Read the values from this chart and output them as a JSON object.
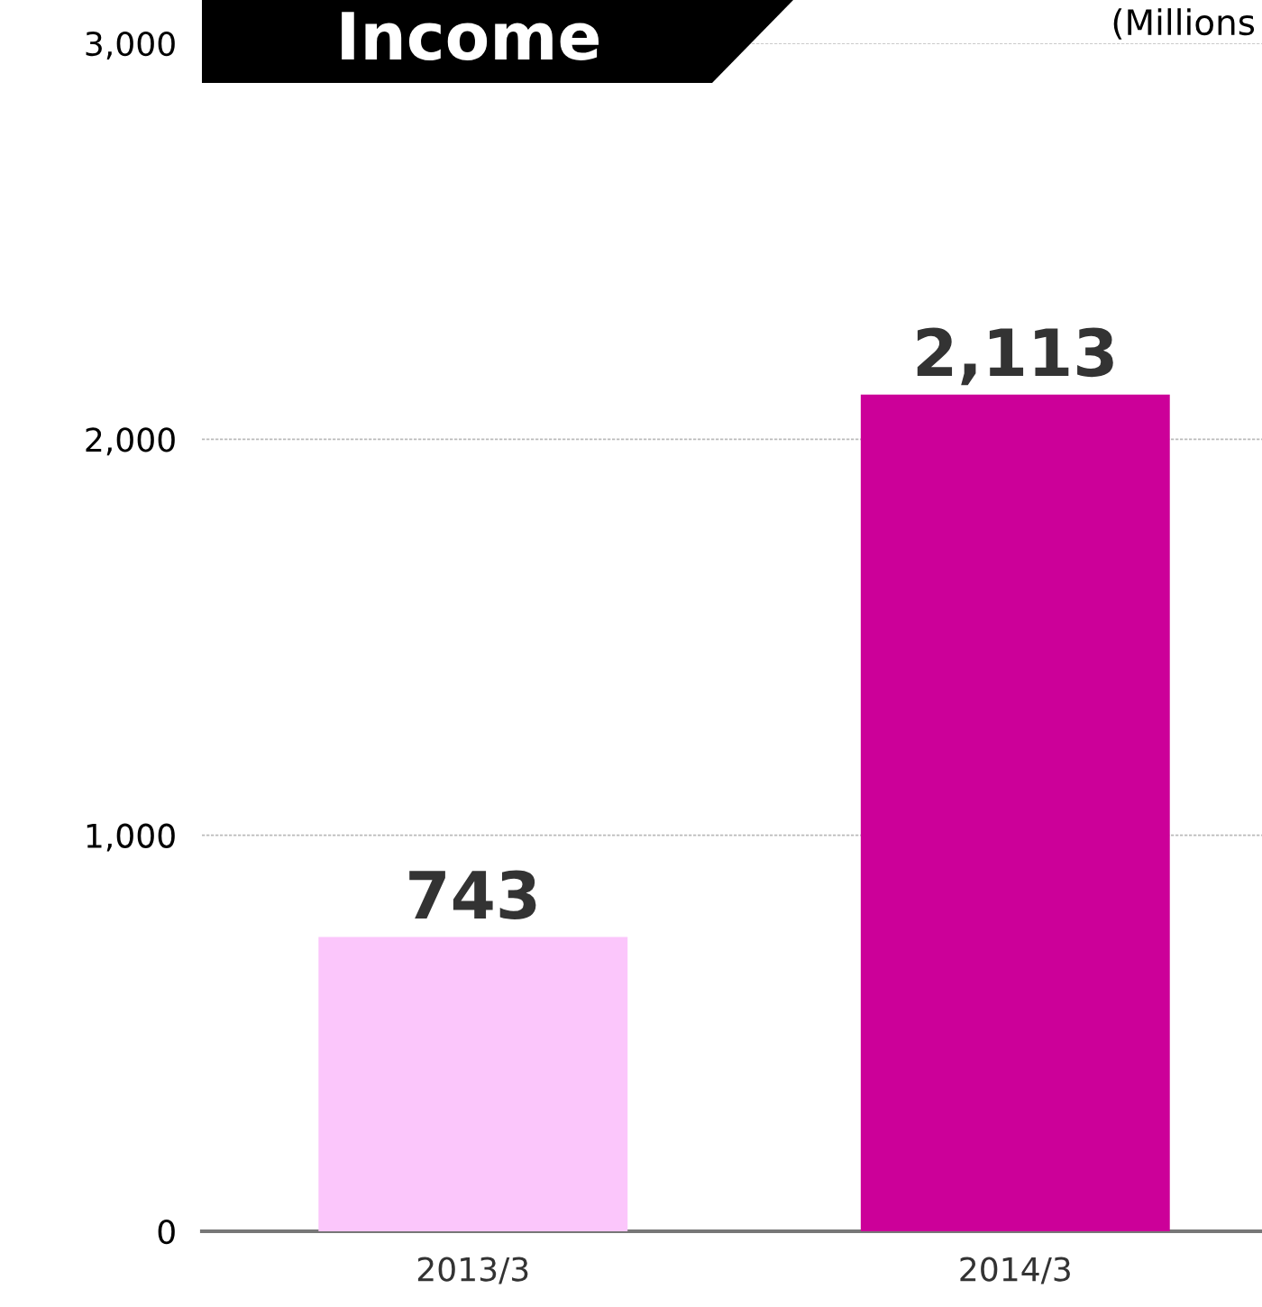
{
  "chart_data": {
    "type": "bar",
    "title": "Income",
    "annotations": [
      "(Millions"
    ],
    "categories": [
      "2013/3",
      "2014/3"
    ],
    "values": [
      743,
      2113
    ],
    "colors": [
      "#fbc6fb",
      "#cc0099"
    ],
    "value_labels": [
      "743",
      "2,113"
    ],
    "ylim": [
      0,
      3000
    ],
    "yticks": [
      0,
      {
        "value": 1000,
        "label": "1,000"
      },
      {
        "value": 2000,
        "label": "2,000"
      },
      {
        "value": 3000,
        "label": "3,000"
      }
    ],
    "grid": "y",
    "legend": false
  }
}
